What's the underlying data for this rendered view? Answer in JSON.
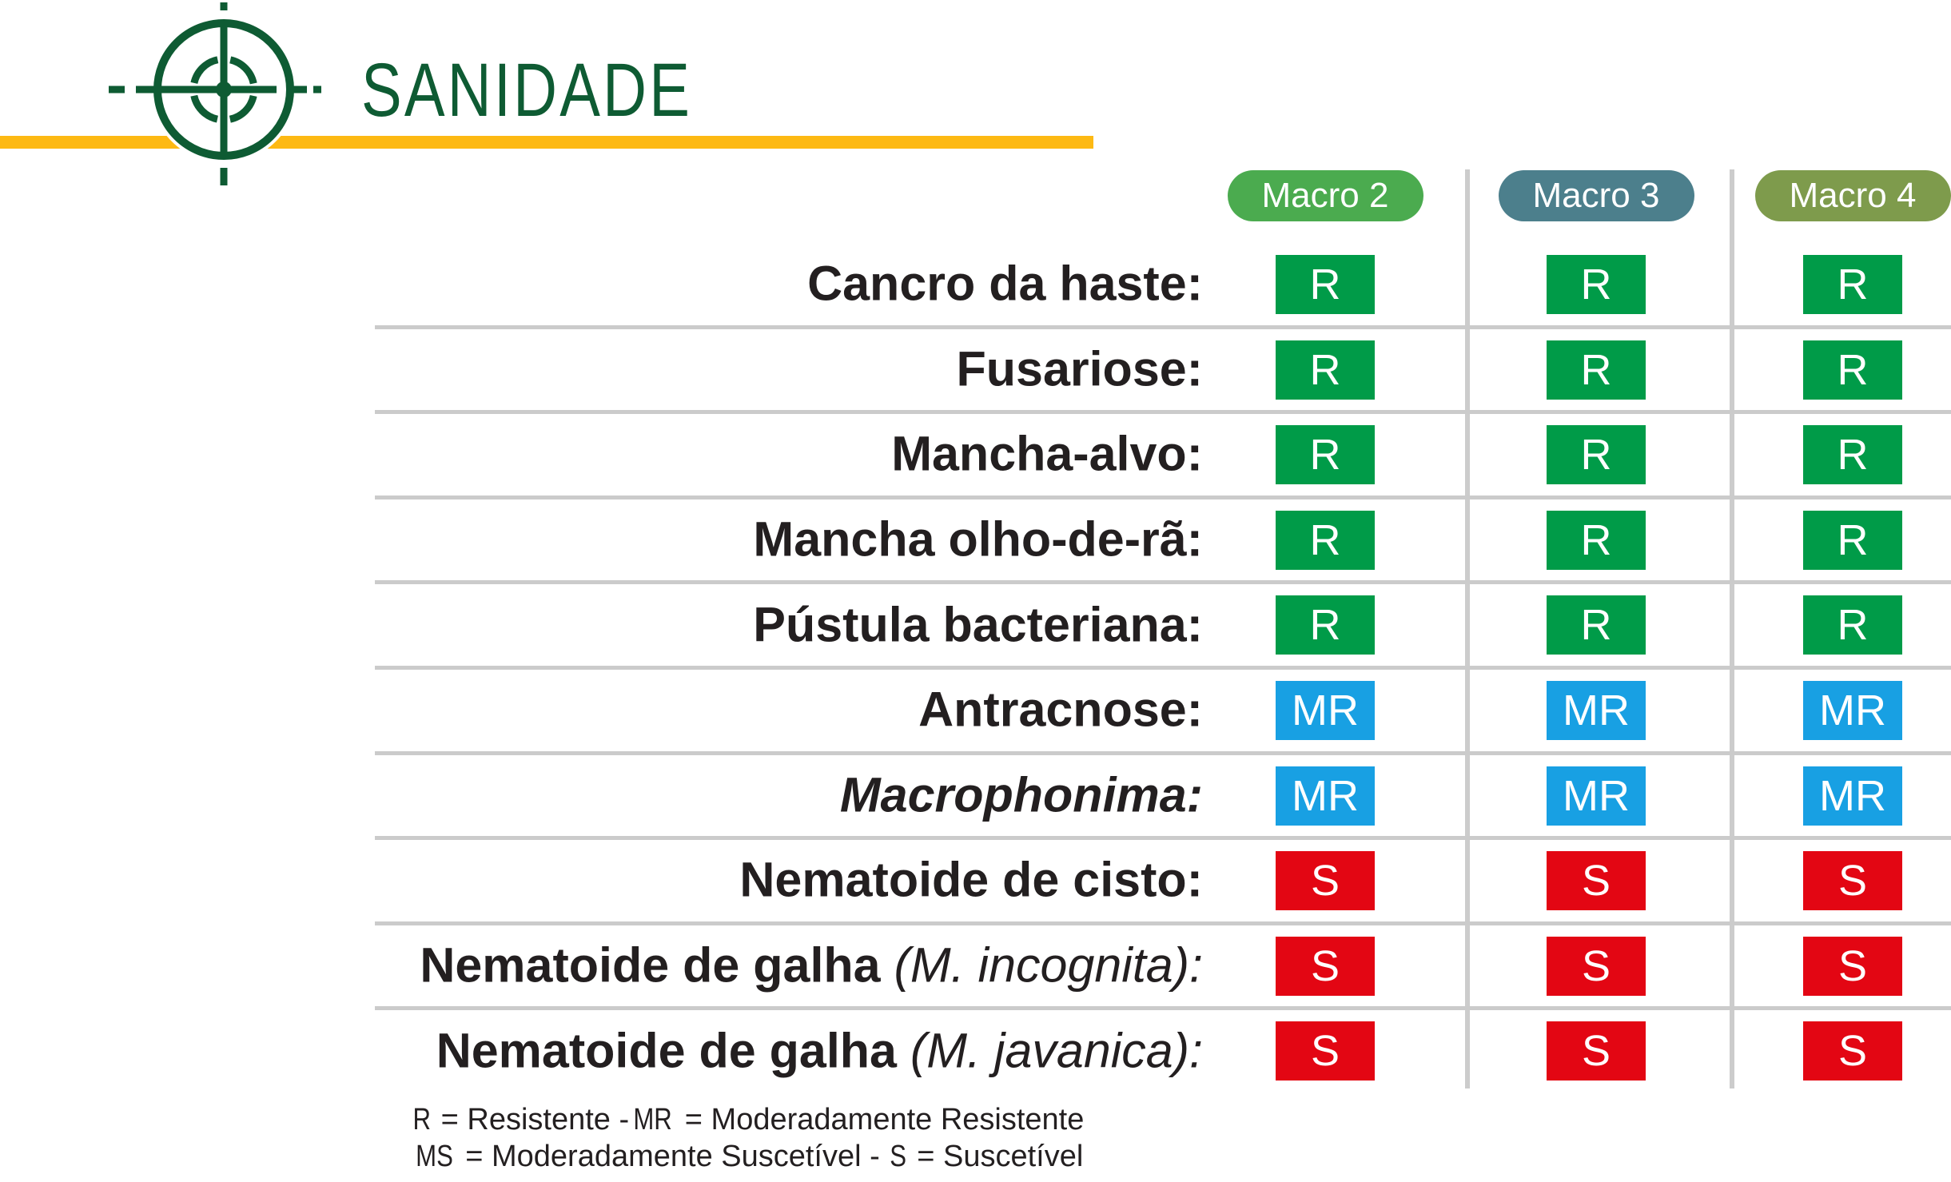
{
  "header": {
    "title": "SANIDADE",
    "accent_bar_color": "#FDB913",
    "brand_green": "#0E5B33"
  },
  "columns": [
    {
      "label": "Macro 2",
      "color": "#4BAB4F"
    },
    {
      "label": "Macro 3",
      "color": "#4C7F8C"
    },
    {
      "label": "Macro 4",
      "color": "#7E9B4C"
    }
  ],
  "ratings": {
    "R": {
      "color": "#009B48",
      "meaning": "Resistente"
    },
    "MR": {
      "color": "#18A0E3",
      "meaning": "Moderadamente Resistente"
    },
    "MS": {
      "color": "#F39200",
      "meaning": "Moderadamente Suscetível"
    },
    "S": {
      "color": "#E30613",
      "meaning": "Suscetível"
    }
  },
  "rows": [
    {
      "label": "Cancro da haste:",
      "italic": false,
      "values": [
        "R",
        "R",
        "R"
      ]
    },
    {
      "label": "Fusariose:",
      "italic": false,
      "values": [
        "R",
        "R",
        "R"
      ]
    },
    {
      "label": "Mancha-alvo:",
      "italic": false,
      "values": [
        "R",
        "R",
        "R"
      ]
    },
    {
      "label": "Mancha olho-de-rã:",
      "italic": false,
      "values": [
        "R",
        "R",
        "R"
      ]
    },
    {
      "label": "Pústula bacteriana:",
      "italic": false,
      "values": [
        "R",
        "R",
        "R"
      ]
    },
    {
      "label": "Antracnose:",
      "italic": false,
      "values": [
        "MR",
        "MR",
        "MR"
      ]
    },
    {
      "label": "Macrophonima:",
      "italic": true,
      "values": [
        "MR",
        "MR",
        "MR"
      ]
    },
    {
      "label": "Nematoide de cisto:",
      "italic": false,
      "values": [
        "S",
        "S",
        "S"
      ]
    },
    {
      "label": "Nematoide de galha ",
      "label_suffix": "(M. incognita):",
      "italic": false,
      "values": [
        "S",
        "S",
        "S"
      ]
    },
    {
      "label": "Nematoide de galha ",
      "label_suffix": "(M. javanica):",
      "italic": false,
      "values": [
        "S",
        "S",
        "S"
      ]
    }
  ],
  "legend": {
    "line1": [
      {
        "text": "R",
        "narrow": true
      },
      {
        "text": " = Resistente -"
      },
      {
        "text": "MR",
        "narrow": true
      },
      {
        "text": " = Moderadamente Resistente"
      }
    ],
    "line2": [
      {
        "text": "MS",
        "narrow": true
      },
      {
        "text": " = Moderadamente Suscetível - "
      },
      {
        "text": "S",
        "narrow": true
      },
      {
        "text": " = Suscetível"
      }
    ]
  }
}
